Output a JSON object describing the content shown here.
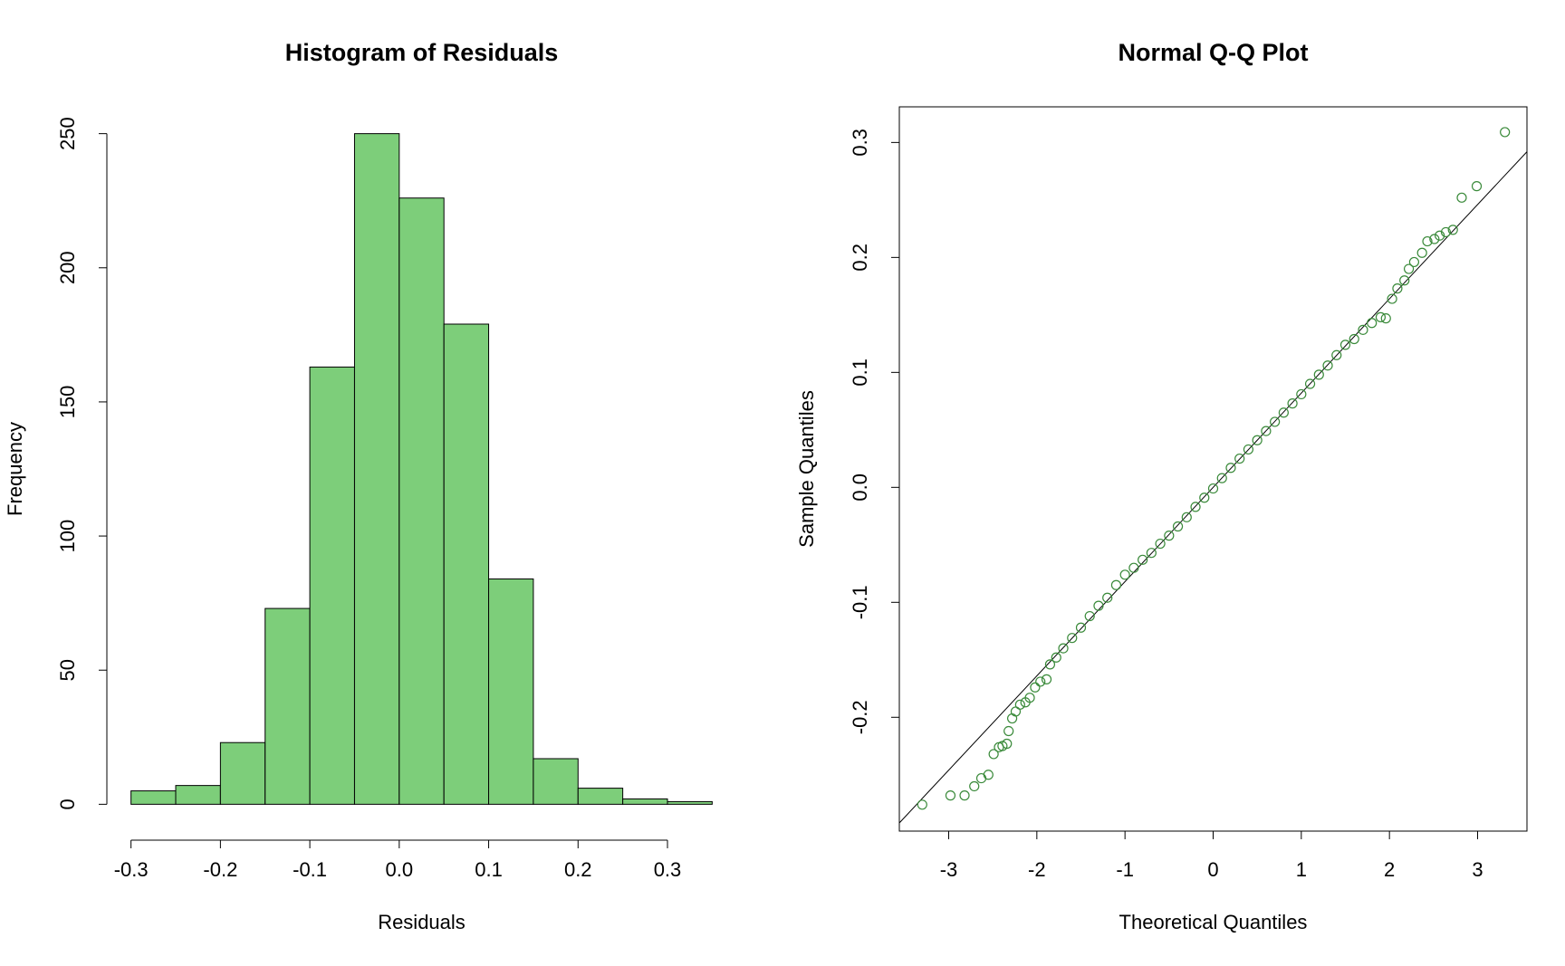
{
  "chart_data": [
    {
      "type": "histogram",
      "title": "Histogram of Residuals",
      "x_label": "Residuals",
      "y_label": "Frequency",
      "bins": [
        -0.3,
        -0.25,
        -0.2,
        -0.15,
        -0.1,
        -0.05,
        0,
        0.05,
        0.1,
        0.15,
        0.2,
        0.25,
        0.3,
        0.35
      ],
      "values": [
        5,
        7,
        23,
        73,
        163,
        250,
        226,
        179,
        84,
        17,
        6,
        2,
        1
      ],
      "color": "#7dce7a",
      "xlim": [
        -0.327,
        0.377
      ],
      "ylim": [
        -10,
        260
      ],
      "xticks": [
        -0.3,
        -0.2,
        -0.1,
        {
          "value": 0,
          "label": "0.0"
        },
        0.1,
        0.2,
        0.3
      ],
      "yticks": [
        0,
        50,
        100,
        150,
        200,
        250
      ]
    },
    {
      "type": "scatter",
      "title": "Normal Q-Q Plot",
      "x_label": "Theoretical Quantiles",
      "y_label": "Sample Quantiles",
      "x": [
        -3.3,
        -2.98,
        -2.82,
        -2.71,
        -2.63,
        -2.55,
        -2.49,
        -2.43,
        -2.39,
        -2.34,
        -2.32,
        -2.28,
        -2.24,
        -2.19,
        -2.13,
        -2.08,
        -2.02,
        -1.96,
        -1.89,
        -1.85,
        -1.78,
        -1.7,
        -1.6,
        -1.5,
        -1.4,
        -1.3,
        -1.2,
        -1.1,
        -1.0,
        -0.9,
        -0.8,
        -0.7,
        -0.6,
        -0.5,
        -0.4,
        -0.3,
        -0.2,
        -0.1,
        0,
        0.1,
        0.2,
        0.3,
        0.4,
        0.5,
        0.6,
        0.7,
        0.8,
        0.9,
        1.0,
        1.1,
        1.2,
        1.3,
        1.4,
        1.5,
        1.6,
        1.7,
        1.8,
        1.9,
        1.96,
        2.03,
        2.09,
        2.17,
        2.22,
        2.28,
        2.37,
        2.43,
        2.51,
        2.57,
        2.64,
        2.72,
        2.82,
        2.99,
        3.31
      ],
      "values": [
        -0.276,
        -0.268,
        -0.268,
        -0.26,
        -0.253,
        -0.25,
        -0.232,
        -0.226,
        -0.225,
        -0.223,
        -0.212,
        -0.201,
        -0.195,
        -0.189,
        -0.187,
        -0.183,
        -0.174,
        -0.169,
        -0.167,
        -0.154,
        -0.148,
        -0.14,
        -0.131,
        -0.122,
        -0.112,
        -0.103,
        -0.096,
        -0.085,
        -0.076,
        -0.07,
        -0.063,
        -0.057,
        -0.049,
        -0.042,
        -0.034,
        -0.026,
        -0.017,
        -0.009,
        -0.001,
        0.008,
        0.017,
        0.025,
        0.033,
        0.041,
        0.049,
        0.057,
        0.065,
        0.073,
        0.081,
        0.09,
        0.098,
        0.106,
        0.115,
        0.124,
        0.129,
        0.137,
        0.143,
        0.148,
        0.147,
        0.164,
        0.173,
        0.18,
        0.19,
        0.196,
        0.204,
        0.214,
        0.216,
        0.219,
        0.222,
        0.224,
        0.252,
        0.262,
        0.309
      ],
      "color": "#3a8a3a",
      "reference_line": {
        "intercept": 0,
        "slope": 0.082
      },
      "xlim": [
        -3.56,
        3.56
      ],
      "ylim": [
        -0.299,
        0.331
      ],
      "xticks": [
        -3,
        -2,
        -1,
        0,
        1,
        2,
        3
      ],
      "yticks": [
        -0.2,
        -0.1,
        {
          "value": 0,
          "label": "0.0"
        },
        0.1,
        0.2,
        0.3
      ],
      "box": true
    }
  ]
}
